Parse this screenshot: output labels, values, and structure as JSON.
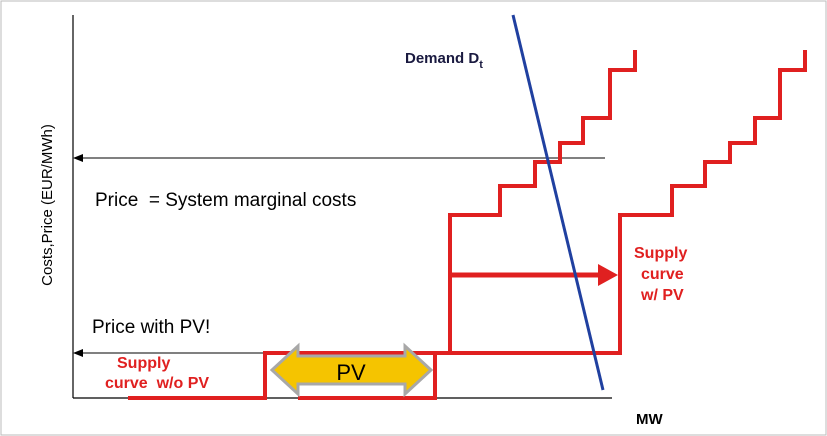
{
  "axes": {
    "y_label": "Costs,Price (EUR/MWh)",
    "x_label": "MW"
  },
  "demand": {
    "label": "Demand D",
    "subscript": "t"
  },
  "annotations": {
    "price": "Price  = System marginal costs",
    "price_pv": "Price with PV!"
  },
  "supply_without_pv": {
    "lines": [
      "Supply",
      "curve  w/o PV"
    ]
  },
  "supply_with_pv": {
    "lines": [
      "Supply",
      "curve",
      "w/ PV"
    ]
  },
  "pv": "PV"
}
